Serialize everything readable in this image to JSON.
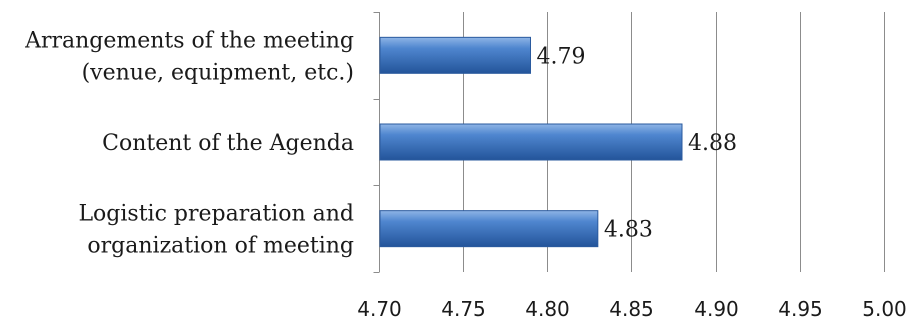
{
  "chart_data": {
    "type": "bar",
    "orientation": "horizontal",
    "categories": [
      "Arrangements of the meeting (venue, equipment, etc.)",
      "Content of the Agenda",
      "Logistic preparation and organization of meeting"
    ],
    "category_lines": [
      [
        "Arrangements of the meeting",
        "(venue, equipment, etc.)"
      ],
      [
        "Content of the Agenda"
      ],
      [
        "Logistic preparation and",
        "organization of meeting"
      ]
    ],
    "values": [
      4.79,
      4.88,
      4.83
    ],
    "value_labels": [
      "4.79",
      "4.88",
      "4.83"
    ],
    "xlim": [
      4.7,
      5.0
    ],
    "x_ticks": [
      "4.70",
      "4.75",
      "4.80",
      "4.85",
      "4.90",
      "4.95",
      "5.00"
    ],
    "title": "",
    "xlabel": "",
    "ylabel": "",
    "grid": true,
    "legend": "none",
    "bar_color": "#4a7fc8",
    "bar_color_dark": "#2a5a9e"
  }
}
